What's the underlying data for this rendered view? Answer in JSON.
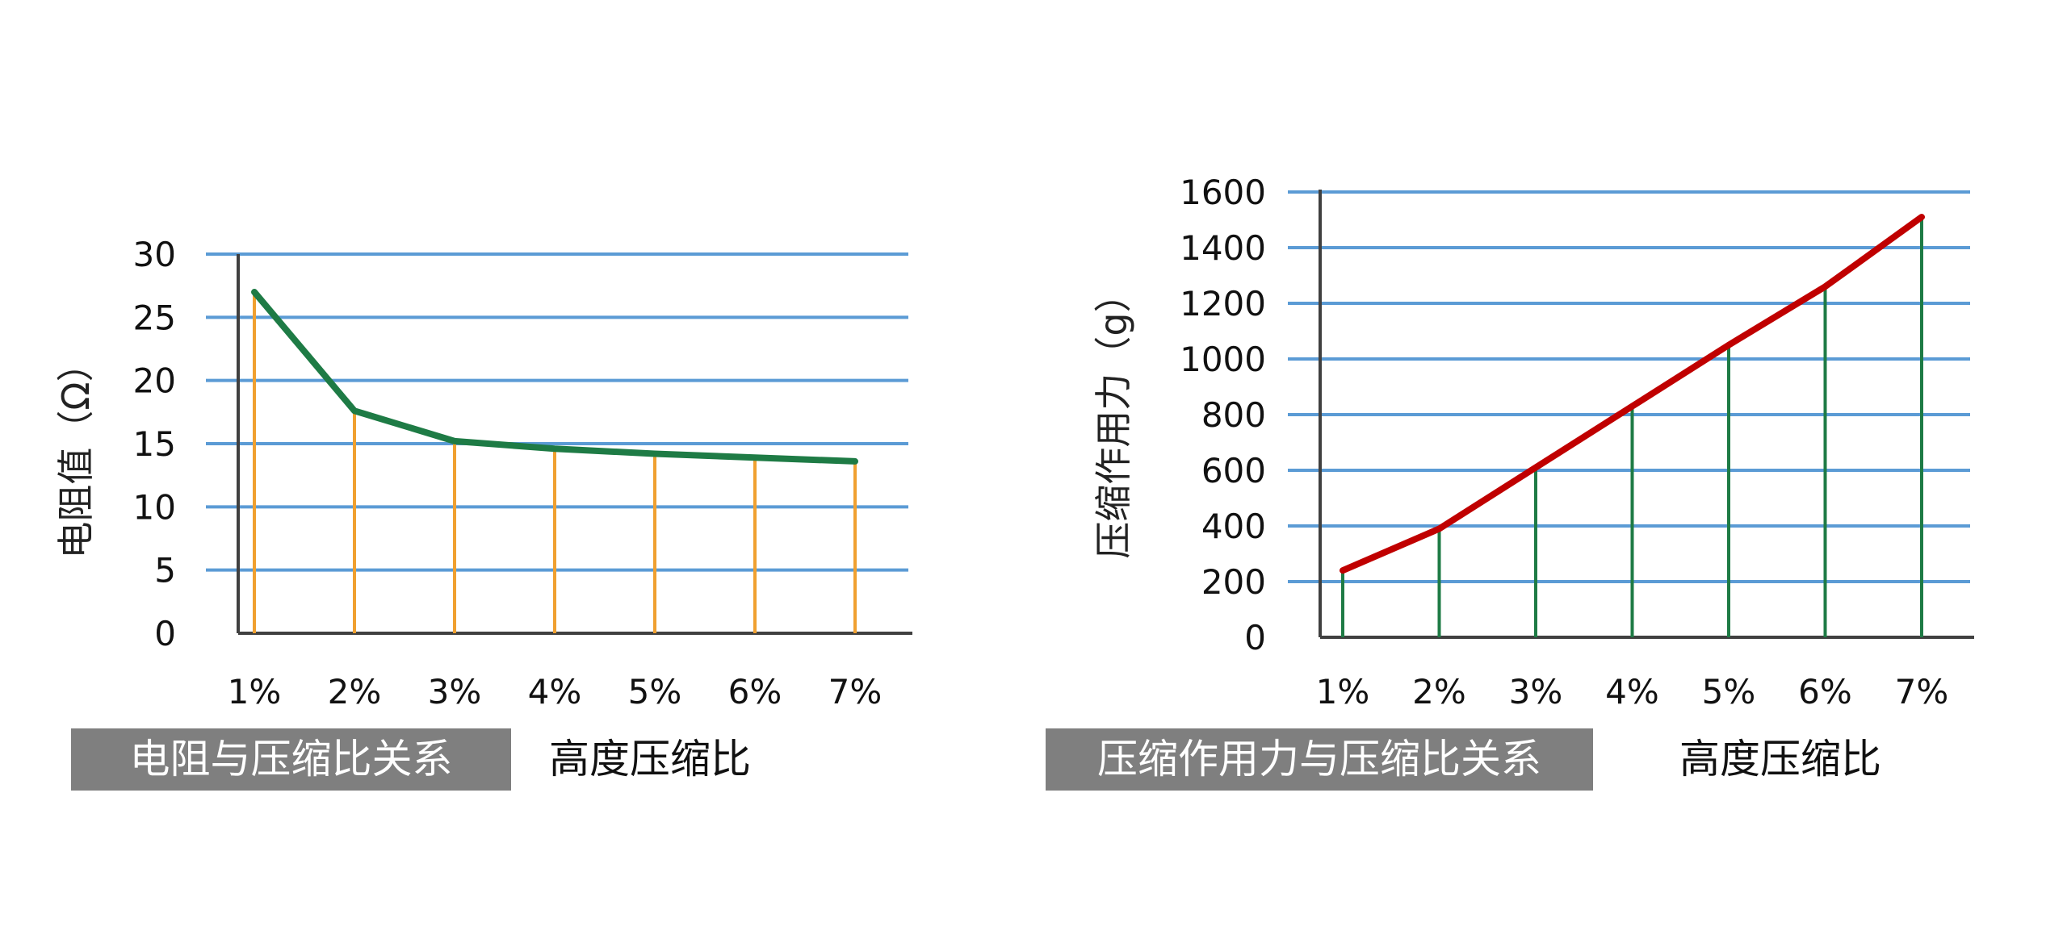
{
  "colors": {
    "grid": "#5b9bd5",
    "axis": "#404040",
    "banner_bg": "#7f7f7f"
  },
  "chart_data": [
    {
      "type": "line",
      "title": "电阻与压缩比关系",
      "xlabel": "高度压缩比",
      "ylabel": "电阻值（Ω）",
      "categories": [
        "1%",
        "2%",
        "3%",
        "4%",
        "5%",
        "6%",
        "7%"
      ],
      "values": [
        27,
        17.6,
        15.2,
        14.6,
        14.2,
        13.9,
        13.6
      ],
      "ylim": [
        0,
        30
      ],
      "yticks": [
        0,
        5,
        10,
        15,
        20,
        25,
        30
      ],
      "grid": true,
      "line_color": "#1e7b45",
      "drop_color": "#f0a030"
    },
    {
      "type": "line",
      "title": "压缩作用力与压缩比关系",
      "xlabel": "高度压缩比",
      "ylabel": "压缩作用力（g）",
      "categories": [
        "1%",
        "2%",
        "3%",
        "4%",
        "5%",
        "6%",
        "7%"
      ],
      "values": [
        240,
        390,
        610,
        830,
        1050,
        1260,
        1510
      ],
      "ylim": [
        0,
        1600
      ],
      "yticks": [
        0,
        200,
        400,
        600,
        800,
        1000,
        1200,
        1400,
        1600
      ],
      "grid": true,
      "line_color": "#c00000",
      "drop_color": "#1e7b45"
    }
  ]
}
